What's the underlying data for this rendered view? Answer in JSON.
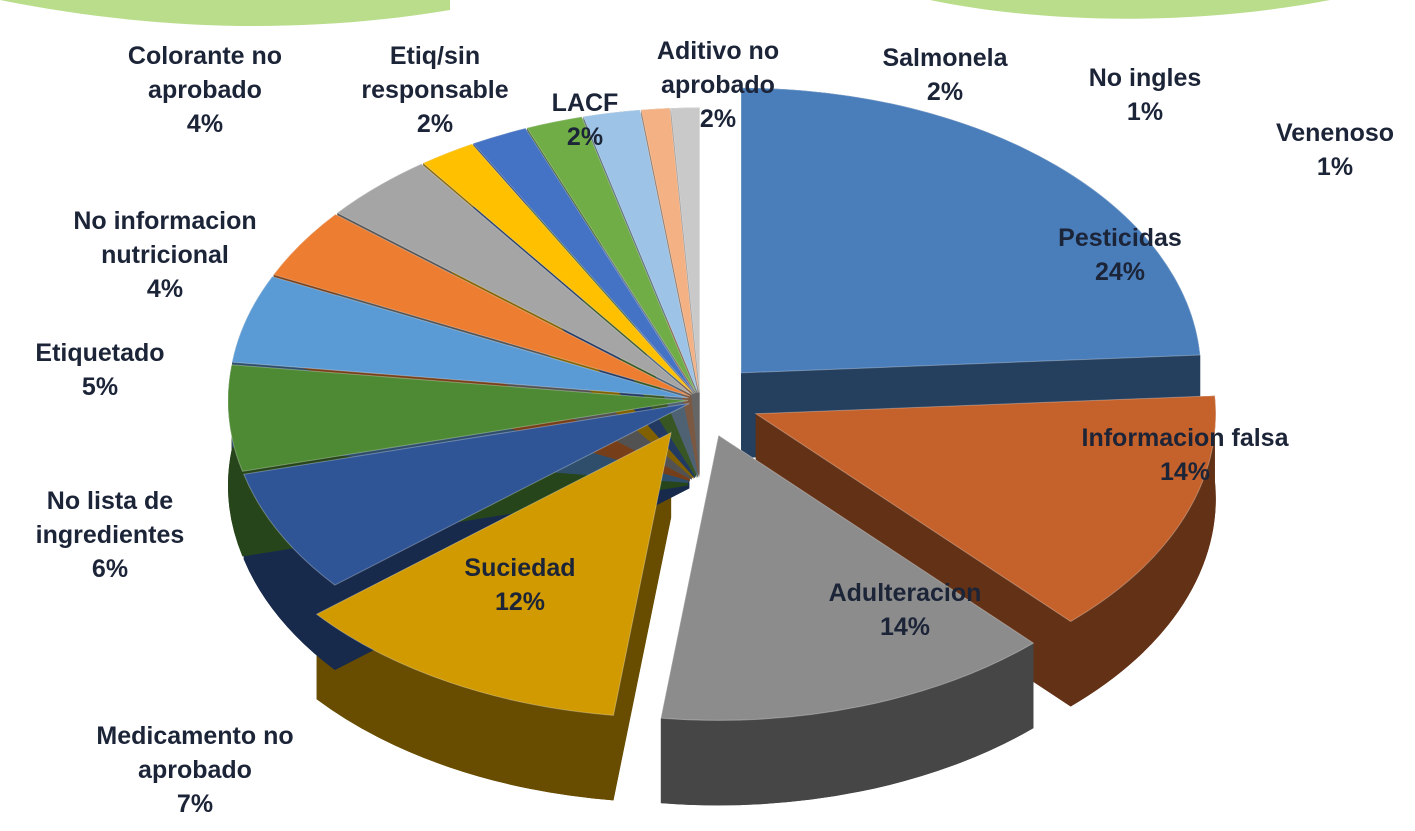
{
  "chart_data": {
    "type": "pie",
    "categories": [
      "Pesticidas",
      "Informacion falsa",
      "Adulteracion",
      "Suciedad",
      "Medicamento no aprobado",
      "No lista de ingredientes",
      "Etiquetado",
      "No informacion nutricional",
      "Colorante no aprobado",
      "Etiq/sin responsable",
      "LACF",
      "Aditivo no aprobado",
      "Salmonela",
      "No ingles",
      "Venenoso"
    ],
    "values": [
      24,
      14,
      14,
      12,
      7,
      6,
      5,
      4,
      4,
      2,
      2,
      2,
      2,
      1,
      1
    ],
    "value_labels": [
      "24%",
      "14%",
      "14%",
      "12%",
      "7%",
      "6%",
      "5%",
      "4%",
      "4%",
      "2%",
      "2%",
      "2%",
      "2%",
      "1%",
      "1%"
    ],
    "colors": [
      "#4a7ebb",
      "#c5612a",
      "#8c8c8c",
      "#d09a00",
      "#2f5597",
      "#4e8a33",
      "#5b9bd5",
      "#ed7d31",
      "#a5a5a5",
      "#ffc000",
      "#4472c4",
      "#70ad47",
      "#9dc3e6",
      "#f4b183",
      "#c9c9c9"
    ]
  }
}
